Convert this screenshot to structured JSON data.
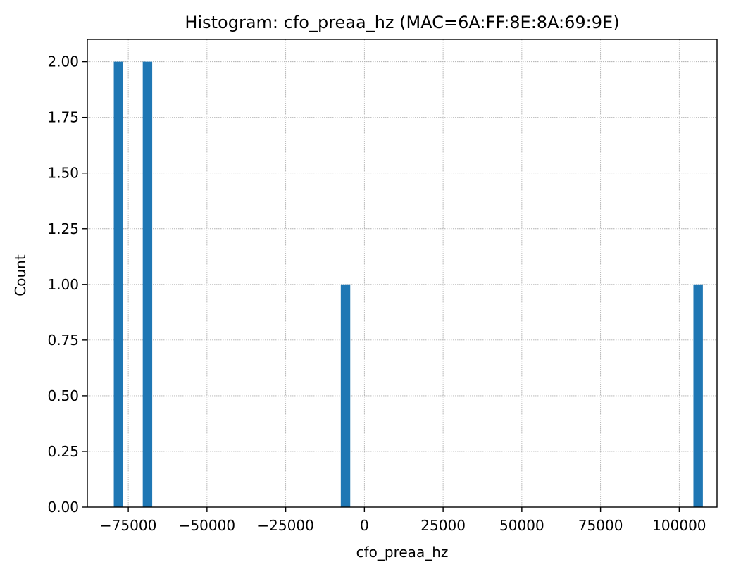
{
  "chart_data": {
    "type": "bar",
    "title": "Histogram: cfo_preaa_hz (MAC=6A:FF:8E:8A:69:9E)",
    "xlabel": "cfo_preaa_hz",
    "ylabel": "Count",
    "xlim": [
      -88000,
      112000
    ],
    "ylim": [
      0,
      2.1
    ],
    "x_ticks": [
      -75000,
      -50000,
      -25000,
      0,
      25000,
      50000,
      75000,
      100000
    ],
    "x_tick_labels": [
      "−75000",
      "−50000",
      "−25000",
      "0",
      "25000",
      "50000",
      "75000",
      "100000"
    ],
    "y_ticks": [
      0,
      0.25,
      0.5,
      0.75,
      1.0,
      1.25,
      1.5,
      1.75,
      2.0
    ],
    "y_tick_labels": [
      "0.00",
      "0.25",
      "0.50",
      "0.75",
      "1.00",
      "1.25",
      "1.50",
      "1.75",
      "2.00"
    ],
    "bins": [
      {
        "x0": -79600,
        "x1": -76600,
        "count": 2
      },
      {
        "x0": -70400,
        "x1": -67400,
        "count": 2
      },
      {
        "x0": -7500,
        "x1": -4500,
        "count": 1
      },
      {
        "x0": 104500,
        "x1": 107500,
        "count": 1
      }
    ],
    "bar_color": "#1f77b4",
    "grid": true
  }
}
